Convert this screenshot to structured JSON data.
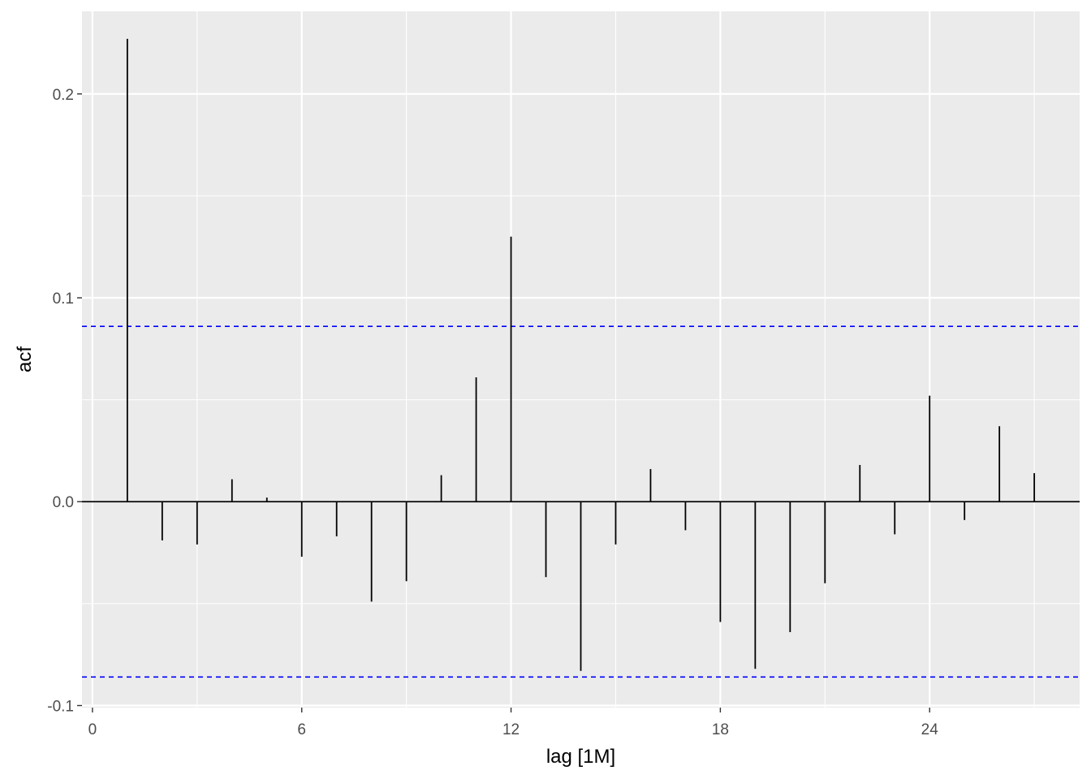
{
  "chart_data": {
    "type": "bar",
    "subtype": "acf-lollipop",
    "title": "",
    "xlabel": "lag [1M]",
    "ylabel": "acf",
    "xlim": [
      -0.3,
      28.3
    ],
    "ylim": [
      -0.101,
      0.2405
    ],
    "x_ticks": [
      0,
      6,
      12,
      18,
      24
    ],
    "x_tick_labels": [
      "0",
      "6",
      "12",
      "18",
      "24"
    ],
    "y_ticks": [
      -0.1,
      0.0,
      0.1,
      0.2
    ],
    "y_tick_labels": [
      "-0.1",
      "0.0",
      "0.1",
      "0.2"
    ],
    "grid": true,
    "confidence_bound": 0.086,
    "colors": {
      "panel_background": "#ebebeb",
      "grid": "#ffffff",
      "spike": "#000000",
      "confidence_line": "#0000ff"
    },
    "lags": [
      1,
      2,
      3,
      4,
      5,
      6,
      7,
      8,
      9,
      10,
      11,
      12,
      13,
      14,
      15,
      16,
      17,
      18,
      19,
      20,
      21,
      22,
      23,
      24,
      25,
      26,
      27
    ],
    "values": [
      0.227,
      -0.019,
      -0.021,
      0.011,
      0.002,
      -0.027,
      -0.017,
      -0.049,
      -0.039,
      0.013,
      0.061,
      0.13,
      -0.037,
      -0.083,
      -0.021,
      0.016,
      -0.014,
      -0.059,
      -0.082,
      -0.064,
      -0.04,
      0.018,
      -0.016,
      0.052,
      -0.009,
      0.037,
      0.014
    ]
  }
}
